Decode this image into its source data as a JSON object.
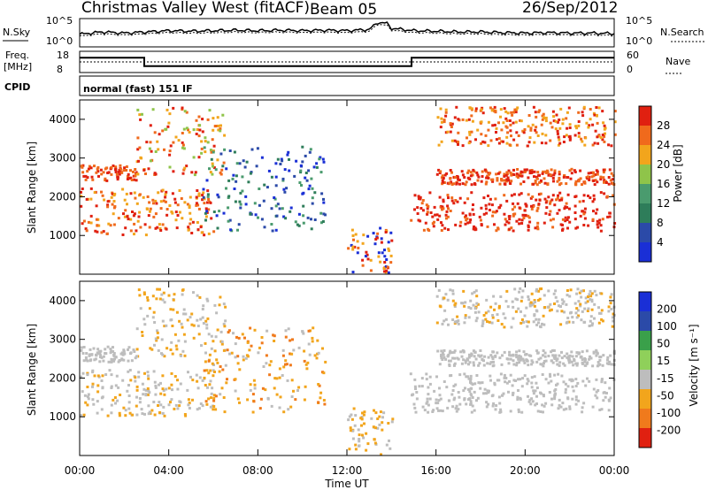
{
  "header": {
    "title": "Christmas Valley West (fitACF)",
    "beam": "Beam 05",
    "date": "26/Sep/2012"
  },
  "left_labels": {
    "nsky": "N.Sky",
    "freq": "Freq.",
    "freq_unit": "[MHz]",
    "cpid": "CPID"
  },
  "right_labels": {
    "nsearch": "N.Search",
    "nave": "Nave"
  },
  "cpid_text": "normal (fast) 151 IF",
  "colors": {
    "power": [
      "#1a2fd6",
      "#2b4aa8",
      "#2e7d5a",
      "#4a9b6e",
      "#8fc44a",
      "#f2a51c",
      "#f06a1c",
      "#e02010"
    ],
    "velocity": [
      "#1a2fd6",
      "#2b4aa8",
      "#3aa04a",
      "#8fd05a",
      "#bdbdbd",
      "#f2a51c",
      "#f07a1c",
      "#e02010"
    ],
    "axis": "#000000"
  },
  "chart_data": [
    {
      "type": "line",
      "name": "noise-panel",
      "ylabel_left": "N.Sky",
      "ylabel_right": "N.Search",
      "left_ticks": [
        "10^5",
        "10^0"
      ],
      "right_ticks": [
        "10^5",
        "10^0"
      ],
      "series": [
        {
          "name": "N.Sky",
          "x": [
            0,
            1,
            2,
            3,
            4,
            5,
            6,
            7,
            8,
            9,
            10,
            11,
            12,
            13,
            13.4,
            13.8,
            14,
            15,
            16,
            17,
            18,
            19,
            20,
            21,
            22,
            23,
            24
          ],
          "y": [
            0.45,
            0.55,
            0.5,
            0.55,
            0.6,
            0.58,
            0.6,
            0.62,
            0.6,
            0.62,
            0.6,
            0.62,
            0.6,
            0.65,
            0.95,
            0.9,
            0.7,
            0.6,
            0.58,
            0.55,
            0.55,
            0.52,
            0.5,
            0.52,
            0.5,
            0.5,
            0.48
          ]
        }
      ]
    },
    {
      "type": "line",
      "name": "frequency-panel",
      "ylabel_left": "Freq. [MHz]",
      "ylabel_right": "Nave",
      "left_ticks": [
        "18",
        "8"
      ],
      "right_ticks": [
        "60",
        "0"
      ],
      "series": [
        {
          "name": "Freq.",
          "x": [
            0,
            2.9,
            2.9,
            14.9,
            14.9,
            24
          ],
          "y": [
            15,
            15,
            11,
            11,
            15,
            15
          ]
        },
        {
          "name": "Nave",
          "x": [
            0,
            24
          ],
          "y": [
            30,
            30
          ]
        }
      ]
    },
    {
      "type": "heatmap",
      "name": "power",
      "ylabel": "Slant Range [km]",
      "xlabel": "Time UT",
      "x_ticks": [
        "00:00",
        "04:00",
        "08:00",
        "12:00",
        "16:00",
        "20:00",
        "00:00"
      ],
      "y_ticks": [
        "1000",
        "2000",
        "3000",
        "4000"
      ],
      "ylim": [
        0,
        4500
      ],
      "colorbar_label": "Power [dB]",
      "colorbar_ticks": [
        "28",
        "24",
        "20",
        "16",
        "12",
        "8",
        "4"
      ]
    },
    {
      "type": "heatmap",
      "name": "velocity",
      "ylabel": "Slant Range [km]",
      "xlabel": "Time UT",
      "x_ticks": [
        "00:00",
        "04:00",
        "08:00",
        "12:00",
        "16:00",
        "20:00",
        "00:00"
      ],
      "y_ticks": [
        "1000",
        "2000",
        "3000",
        "4000"
      ],
      "ylim": [
        0,
        4500
      ],
      "colorbar_label": "Velocity [m s⁻¹]",
      "colorbar_ticks": [
        "200",
        "100",
        "50",
        "15",
        "-15",
        "-50",
        "-100",
        "-200"
      ]
    }
  ],
  "xaxis_title": "Time UT"
}
